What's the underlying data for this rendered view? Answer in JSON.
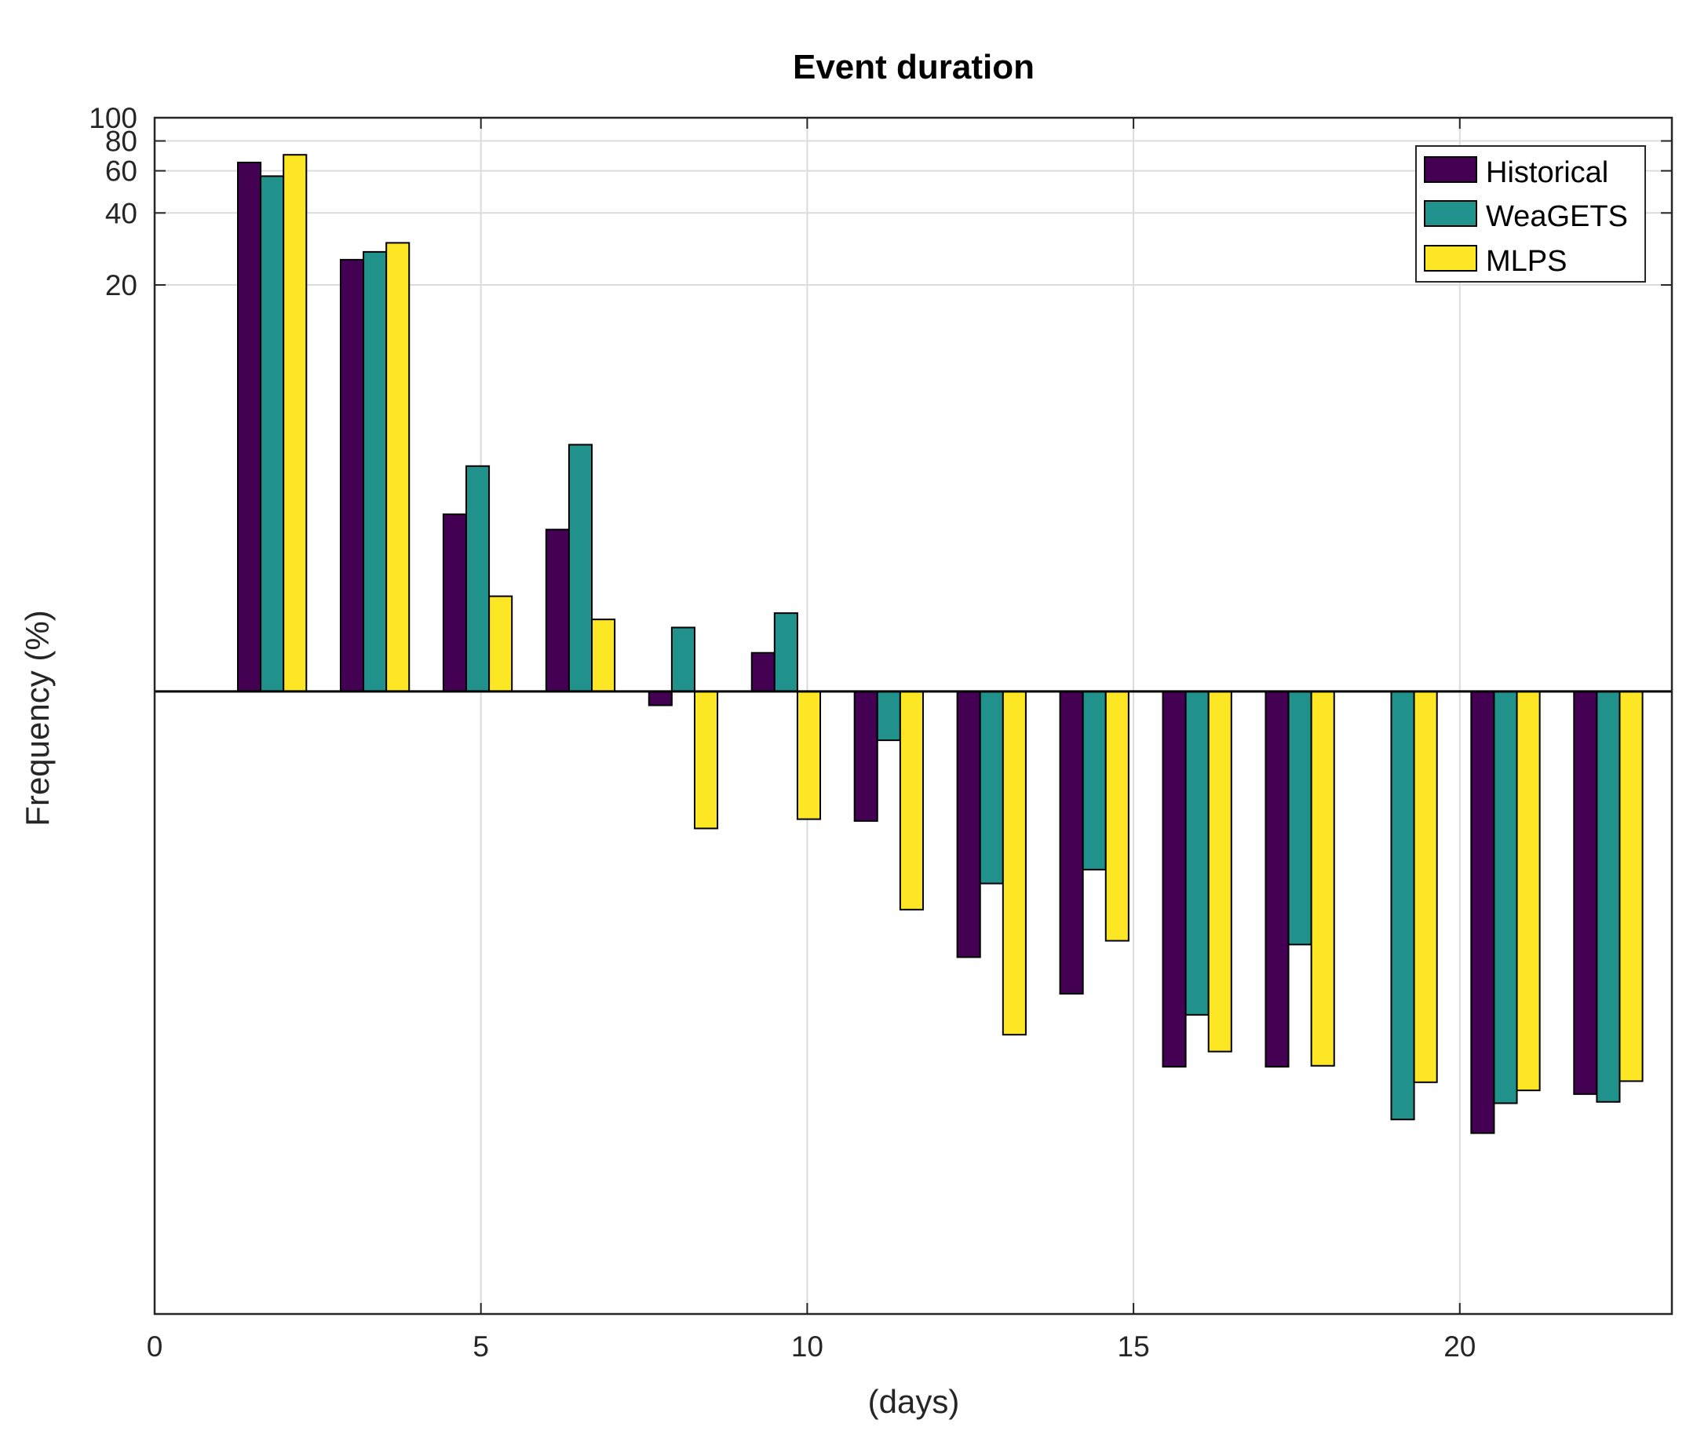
{
  "chart_data": {
    "type": "bar",
    "title": "Event duration",
    "xlabel": "(days)",
    "ylabel": "Frequency (%)",
    "y_scale": "log",
    "xlim": [
      0,
      23.25
    ],
    "ylim": [
      0.001,
      100
    ],
    "grid": true,
    "legend_position": "top-right",
    "x": [
      1.8,
      3.375,
      4.95,
      6.525,
      8.1,
      9.675,
      11.25,
      12.825,
      14.4,
      15.975,
      17.55,
      19.125,
      20.7,
      22.275
    ],
    "x_ticks": [
      "0",
      "5",
      "10",
      "15",
      "20"
    ],
    "y_ticks": [
      "100",
      "80",
      "60",
      "40",
      "20"
    ],
    "series": [
      {
        "name": "Historical",
        "color": "#440154",
        "values": [
          65,
          25.5,
          2.2,
          1.9,
          0.35,
          0.58,
          0.115,
          0.031,
          0.0218,
          0.0108,
          0.0108,
          null,
          0.0057,
          0.0083
        ]
      },
      {
        "name": "WeaGETS",
        "color": "#21918c",
        "values": [
          57,
          27.5,
          3.5,
          4.3,
          0.74,
          0.85,
          0.25,
          0.063,
          0.072,
          0.0178,
          0.035,
          0.0065,
          0.0076,
          0.0077
        ]
      },
      {
        "name": "MLPS",
        "color": "#fde725",
        "values": [
          70,
          30,
          1.0,
          0.8,
          0.107,
          0.117,
          0.049,
          0.0147,
          0.0363,
          0.0125,
          0.0109,
          0.0093,
          0.0086,
          0.0094
        ]
      }
    ]
  }
}
